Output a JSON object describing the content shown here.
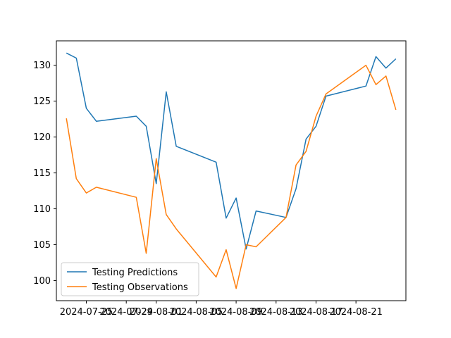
{
  "chart_data": {
    "type": "line",
    "title": "",
    "xlabel": "",
    "ylabel": "",
    "x": [
      "2024-07-23",
      "2024-07-24",
      "2024-07-25",
      "2024-07-26",
      "2024-07-30",
      "2024-07-31",
      "2024-08-01",
      "2024-08-02",
      "2024-08-03",
      "2024-08-07",
      "2024-08-08",
      "2024-08-09",
      "2024-08-10",
      "2024-08-11",
      "2024-08-14",
      "2024-08-15",
      "2024-08-16",
      "2024-08-17",
      "2024-08-18",
      "2024-08-22",
      "2024-08-23",
      "2024-08-24",
      "2024-08-25"
    ],
    "series": [
      {
        "name": "Testing Predictions",
        "color": "#1f77b4",
        "values": [
          131.7,
          131.0,
          124.0,
          122.2,
          122.9,
          121.5,
          113.5,
          126.3,
          118.7,
          116.5,
          108.7,
          111.5,
          104.4,
          109.7,
          108.8,
          112.8,
          119.7,
          121.5,
          125.7,
          127.1,
          131.2,
          129.6,
          130.9
        ]
      },
      {
        "name": "Testing Observations",
        "color": "#ff7f0e",
        "values": [
          122.6,
          114.2,
          112.2,
          113.0,
          111.6,
          103.8,
          117.0,
          109.2,
          107.2,
          100.5,
          104.3,
          98.9,
          105.0,
          104.7,
          108.8,
          116.1,
          118.0,
          122.9,
          126.0,
          130.0,
          127.3,
          128.5,
          123.8
        ]
      }
    ],
    "x_ticks": [
      "2024-07-25",
      "2024-07-29",
      "2024-08-01",
      "2024-08-05",
      "2024-08-09",
      "2024-08-13",
      "2024-08-17",
      "2024-08-21"
    ],
    "y_ticks": [
      100,
      105,
      110,
      115,
      120,
      125,
      130
    ],
    "xlim": [
      "2024-07-22",
      "2024-08-26"
    ],
    "ylim": [
      97.2,
      133.4
    ],
    "legend_position": "lower-left",
    "grid": false
  }
}
